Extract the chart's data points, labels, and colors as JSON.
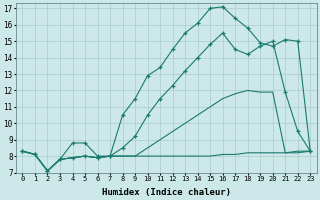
{
  "xlabel": "Humidex (Indice chaleur)",
  "background_color": "#cce8e8",
  "grid_color": "#aacccc",
  "line_color": "#1a7a6e",
  "xlim": [
    -0.5,
    23.5
  ],
  "ylim": [
    7,
    17.3
  ],
  "yticks": [
    7,
    8,
    9,
    10,
    11,
    12,
    13,
    14,
    15,
    16,
    17
  ],
  "xticks": [
    0,
    1,
    2,
    3,
    4,
    5,
    6,
    7,
    8,
    9,
    10,
    11,
    12,
    13,
    14,
    15,
    16,
    17,
    18,
    19,
    20,
    21,
    22,
    23
  ],
  "series": [
    {
      "x": [
        0,
        1,
        2,
        3,
        4,
        5,
        6,
        7,
        8,
        9,
        10,
        11,
        12,
        13,
        14,
        15,
        16,
        17,
        18,
        19,
        20,
        21,
        22,
        23
      ],
      "y": [
        8.3,
        8.1,
        7.1,
        7.8,
        8.8,
        8.8,
        8.0,
        8.0,
        10.5,
        11.5,
        12.9,
        13.4,
        14.5,
        15.5,
        16.1,
        17.0,
        17.1,
        16.4,
        15.8,
        14.9,
        14.7,
        15.1,
        15.0,
        8.3
      ],
      "marker": "+"
    },
    {
      "x": [
        0,
        1,
        2,
        3,
        4,
        5,
        6,
        7,
        8,
        9,
        10,
        11,
        12,
        13,
        14,
        15,
        16,
        17,
        18,
        19,
        20,
        21,
        22,
        23
      ],
      "y": [
        8.3,
        8.1,
        7.1,
        7.8,
        7.9,
        8.0,
        7.9,
        8.0,
        8.5,
        9.2,
        10.5,
        11.5,
        12.3,
        13.2,
        14.0,
        14.8,
        15.5,
        14.5,
        14.2,
        14.7,
        15.0,
        11.9,
        9.5,
        8.3
      ],
      "marker": "+"
    },
    {
      "x": [
        0,
        1,
        2,
        3,
        4,
        5,
        6,
        7,
        8,
        9,
        10,
        11,
        12,
        13,
        14,
        15,
        16,
        17,
        18,
        19,
        20,
        21,
        22,
        23
      ],
      "y": [
        8.3,
        8.1,
        7.1,
        7.8,
        7.9,
        8.0,
        7.9,
        8.0,
        8.0,
        8.0,
        8.5,
        9.0,
        9.5,
        10.0,
        10.5,
        11.0,
        11.5,
        11.8,
        12.0,
        11.9,
        11.9,
        8.2,
        8.2,
        8.3
      ],
      "marker": null
    },
    {
      "x": [
        0,
        1,
        2,
        3,
        4,
        5,
        6,
        7,
        8,
        9,
        10,
        11,
        12,
        13,
        14,
        15,
        16,
        17,
        18,
        19,
        20,
        21,
        22,
        23
      ],
      "y": [
        8.3,
        8.1,
        7.1,
        7.8,
        7.9,
        8.0,
        7.9,
        8.0,
        8.0,
        8.0,
        8.0,
        8.0,
        8.0,
        8.0,
        8.0,
        8.0,
        8.1,
        8.1,
        8.2,
        8.2,
        8.2,
        8.2,
        8.3,
        8.3
      ],
      "marker": null
    }
  ]
}
